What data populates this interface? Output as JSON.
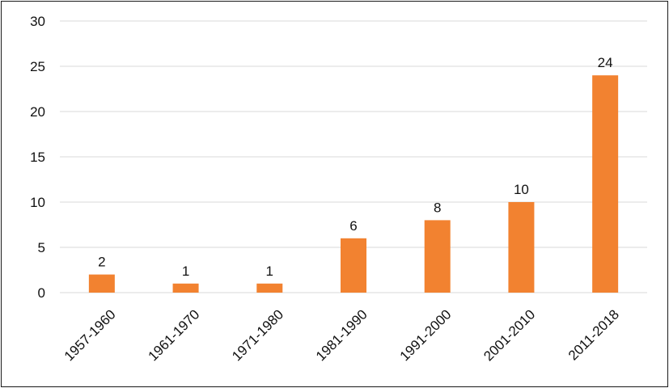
{
  "chart_data": {
    "type": "bar",
    "title": "",
    "xlabel": "",
    "ylabel": "",
    "categories": [
      "1957-1960",
      "1961-1970",
      "1971-1980",
      "1981-1990",
      "1991-2000",
      "2001-2010",
      "2011-2018"
    ],
    "values": [
      2,
      1,
      1,
      6,
      8,
      10,
      24
    ],
    "ylim": [
      0,
      30
    ],
    "yticks": [
      0,
      5,
      10,
      15,
      20,
      25,
      30
    ],
    "grid": true,
    "legend": "none",
    "bar_color": "#f28230",
    "data_labels": true
  }
}
